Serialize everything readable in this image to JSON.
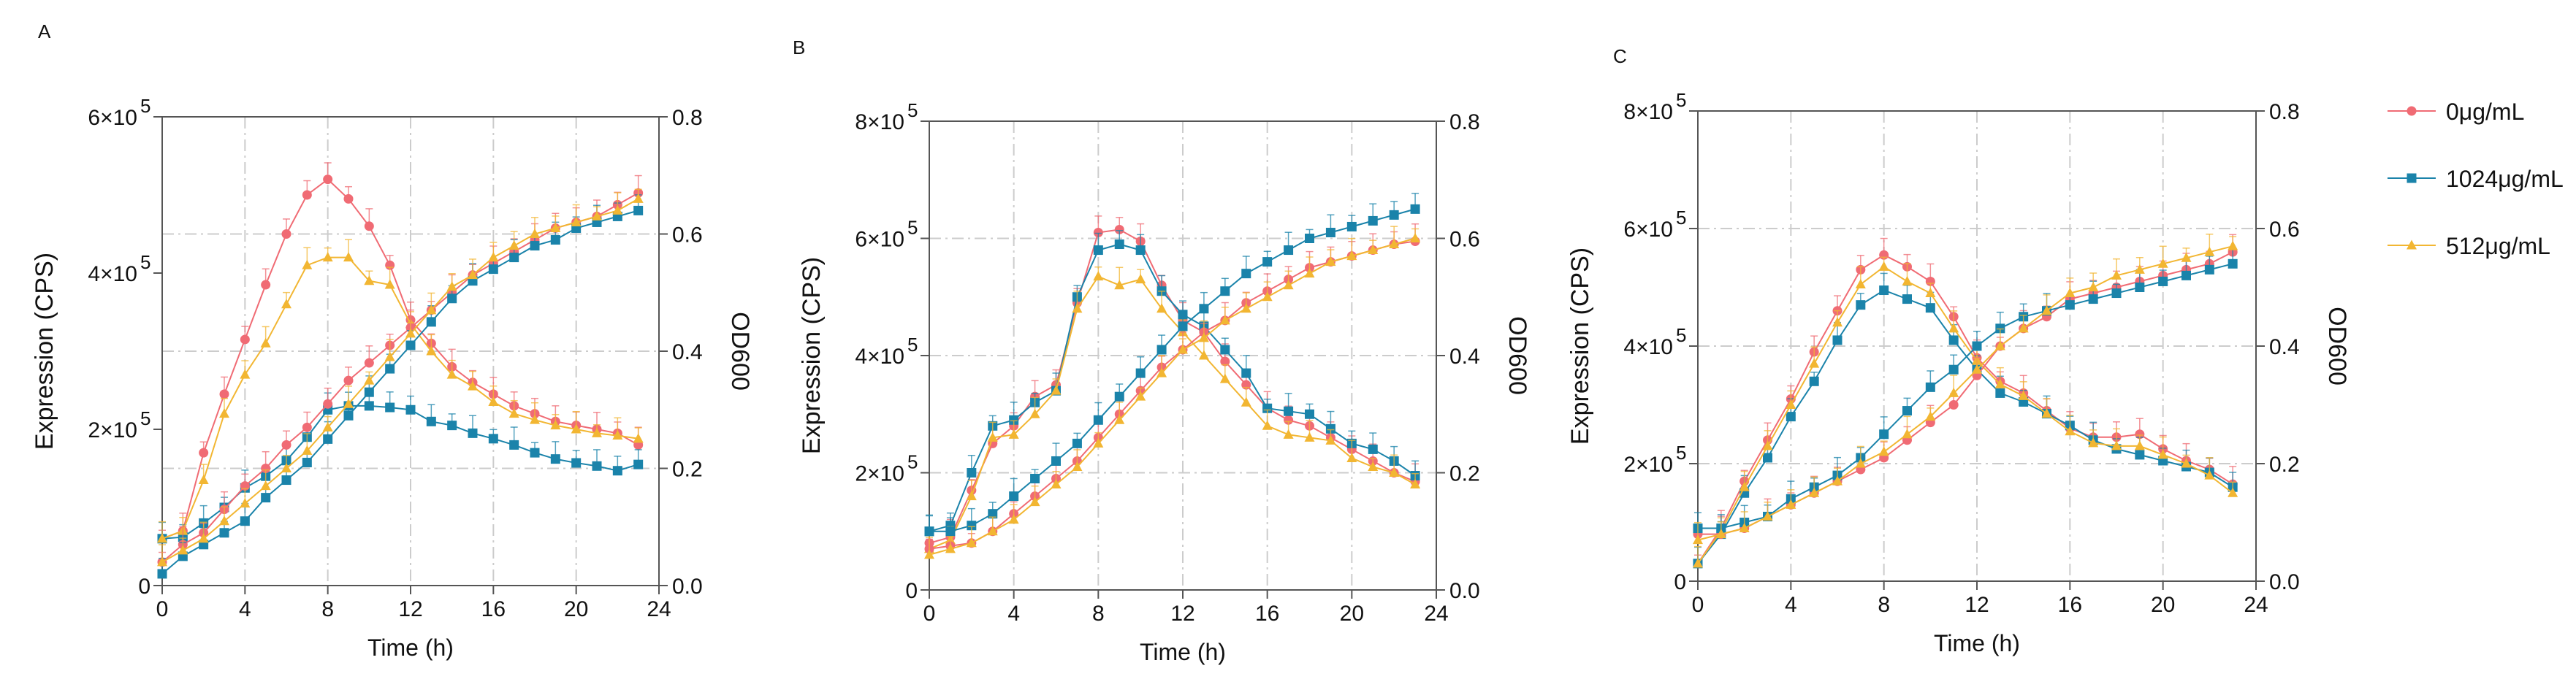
{
  "colors": {
    "red": "#f06b74",
    "blue": "#1a83aa",
    "yellow": "#f2b632",
    "axis": "#555555",
    "grid": "#cccccc"
  },
  "legend": [
    {
      "name": "0μg/mL",
      "color": "#f06b74",
      "marker": "circle"
    },
    {
      "name": "1024μg/mL",
      "color": "#1a83aa",
      "marker": "square"
    },
    {
      "name": "512μg/mL",
      "color": "#f2b632",
      "marker": "triangle"
    }
  ],
  "chart_data": [
    {
      "panel": "A",
      "type": "line",
      "xlabel": "Time (h)",
      "ylabel_left": "Expression (CPS)",
      "ylabel_right": "OD600",
      "xlim": [
        0,
        24
      ],
      "xticks": [
        "0",
        "4",
        "8",
        "12",
        "16",
        "20",
        "24"
      ],
      "ylim_left": [
        0,
        600000
      ],
      "yticks_left": [
        "0",
        "2×10",
        "4×10",
        "6×10"
      ],
      "ylim_right": [
        0,
        0.8
      ],
      "yticks_right": [
        "0.0",
        "0.2",
        "0.4",
        "0.6",
        "0.8"
      ],
      "x": [
        0,
        1,
        2,
        3,
        4,
        5,
        6,
        7,
        8,
        9,
        10,
        11,
        12,
        13,
        14,
        15,
        16,
        17,
        18,
        19,
        20,
        21,
        22,
        23
      ],
      "series": [
        {
          "name": "0μg/mL",
          "axis": "left",
          "values": [
            60000,
            70000,
            170000,
            245000,
            315000,
            385000,
            450000,
            500000,
            520000,
            495000,
            460000,
            410000,
            340000,
            310000,
            280000,
            260000,
            245000,
            230000,
            220000,
            210000,
            205000,
            200000,
            195000,
            180000
          ]
        },
        {
          "name": "1024μg/mL",
          "axis": "left",
          "values": [
            60000,
            62000,
            80000,
            100000,
            125000,
            140000,
            160000,
            190000,
            225000,
            230000,
            230000,
            228000,
            225000,
            210000,
            205000,
            195000,
            188000,
            180000,
            170000,
            162000,
            157000,
            153000,
            147000,
            155000
          ]
        },
        {
          "name": "512μg/mL",
          "axis": "left",
          "values": [
            60000,
            70000,
            135000,
            220000,
            270000,
            310000,
            360000,
            410000,
            420000,
            420000,
            390000,
            385000,
            335000,
            300000,
            270000,
            255000,
            235000,
            220000,
            212000,
            205000,
            200000,
            195000,
            192000,
            188000
          ]
        },
        {
          "name": "0μg/mL",
          "axis": "right",
          "values": [
            0.04,
            0.07,
            0.09,
            0.13,
            0.17,
            0.2,
            0.24,
            0.27,
            0.31,
            0.35,
            0.38,
            0.41,
            0.44,
            0.47,
            0.5,
            0.53,
            0.55,
            0.57,
            0.59,
            0.61,
            0.62,
            0.63,
            0.65,
            0.67
          ]
        },
        {
          "name": "1024μg/mL",
          "axis": "right",
          "values": [
            0.02,
            0.05,
            0.07,
            0.09,
            0.11,
            0.15,
            0.18,
            0.21,
            0.25,
            0.29,
            0.33,
            0.37,
            0.41,
            0.45,
            0.49,
            0.52,
            0.54,
            0.56,
            0.58,
            0.59,
            0.61,
            0.62,
            0.63,
            0.64
          ]
        },
        {
          "name": "512μg/mL",
          "axis": "right",
          "values": [
            0.04,
            0.06,
            0.08,
            0.11,
            0.14,
            0.17,
            0.2,
            0.23,
            0.27,
            0.31,
            0.35,
            0.39,
            0.43,
            0.47,
            0.51,
            0.53,
            0.56,
            0.58,
            0.6,
            0.61,
            0.62,
            0.63,
            0.64,
            0.66
          ]
        }
      ]
    },
    {
      "panel": "B",
      "type": "line",
      "xlabel": "Time (h)",
      "ylabel_left": "Expression (CPS)",
      "ylabel_right": "OD600",
      "xlim": [
        0,
        24
      ],
      "xticks": [
        "0",
        "4",
        "8",
        "12",
        "16",
        "20",
        "24"
      ],
      "ylim_left": [
        0,
        800000
      ],
      "yticks_left": [
        "0",
        "2×10",
        "4×10",
        "6×10",
        "8×10"
      ],
      "ylim_right": [
        0,
        0.8
      ],
      "yticks_right": [
        "0.0",
        "0.2",
        "0.4",
        "0.6",
        "0.8"
      ],
      "x": [
        0,
        1,
        2,
        3,
        4,
        5,
        6,
        7,
        8,
        9,
        10,
        11,
        12,
        13,
        14,
        15,
        16,
        17,
        18,
        19,
        20,
        21,
        22,
        23
      ],
      "series": [
        {
          "name": "0μg/mL",
          "axis": "left",
          "values": [
            80000,
            90000,
            170000,
            250000,
            280000,
            330000,
            350000,
            490000,
            610000,
            615000,
            595000,
            520000,
            460000,
            440000,
            390000,
            350000,
            310000,
            290000,
            280000,
            260000,
            240000,
            220000,
            200000,
            185000
          ]
        },
        {
          "name": "1024μg/mL",
          "axis": "left",
          "values": [
            100000,
            110000,
            200000,
            280000,
            290000,
            320000,
            340000,
            500000,
            580000,
            590000,
            580000,
            510000,
            470000,
            450000,
            410000,
            370000,
            310000,
            305000,
            300000,
            275000,
            250000,
            240000,
            220000,
            195000
          ]
        },
        {
          "name": "512μg/mL",
          "axis": "left",
          "values": [
            70000,
            85000,
            160000,
            260000,
            265000,
            300000,
            340000,
            480000,
            535000,
            520000,
            530000,
            480000,
            440000,
            400000,
            360000,
            320000,
            280000,
            265000,
            260000,
            255000,
            225000,
            210000,
            200000,
            180000
          ]
        },
        {
          "name": "0μg/mL",
          "axis": "right",
          "values": [
            0.07,
            0.075,
            0.08,
            0.1,
            0.13,
            0.16,
            0.19,
            0.22,
            0.26,
            0.3,
            0.34,
            0.38,
            0.41,
            0.44,
            0.46,
            0.49,
            0.51,
            0.53,
            0.55,
            0.56,
            0.57,
            0.58,
            0.59,
            0.595
          ]
        },
        {
          "name": "1024μg/mL",
          "axis": "right",
          "values": [
            0.1,
            0.1,
            0.11,
            0.13,
            0.16,
            0.19,
            0.22,
            0.25,
            0.29,
            0.33,
            0.37,
            0.41,
            0.45,
            0.48,
            0.51,
            0.54,
            0.56,
            0.58,
            0.6,
            0.61,
            0.62,
            0.63,
            0.64,
            0.65
          ]
        },
        {
          "name": "512μg/mL",
          "axis": "right",
          "values": [
            0.06,
            0.07,
            0.08,
            0.1,
            0.12,
            0.15,
            0.18,
            0.21,
            0.25,
            0.29,
            0.33,
            0.37,
            0.41,
            0.43,
            0.46,
            0.48,
            0.5,
            0.52,
            0.54,
            0.56,
            0.57,
            0.58,
            0.59,
            0.6
          ]
        }
      ]
    },
    {
      "panel": "C",
      "type": "line",
      "xlabel": "Time (h)",
      "ylabel_left": "Expression (CPS)",
      "ylabel_right": "OD600",
      "xlim": [
        0,
        24
      ],
      "xticks": [
        "0",
        "4",
        "8",
        "12",
        "16",
        "20",
        "24"
      ],
      "ylim_left": [
        0,
        800000
      ],
      "yticks_left": [
        "0",
        "2×10",
        "4×10",
        "6×10",
        "8×10"
      ],
      "ylim_right": [
        0,
        0.8
      ],
      "yticks_right": [
        "0.0",
        "0.2",
        "0.4",
        "0.6",
        "0.8"
      ],
      "x": [
        0,
        1,
        2,
        3,
        4,
        5,
        6,
        7,
        8,
        9,
        10,
        11,
        12,
        13,
        14,
        15,
        16,
        17,
        18,
        19,
        20,
        21,
        22,
        23
      ],
      "series": [
        {
          "name": "0μg/mL",
          "axis": "left",
          "values": [
            30000,
            90000,
            170000,
            240000,
            310000,
            390000,
            460000,
            530000,
            555000,
            535000,
            510000,
            450000,
            380000,
            340000,
            320000,
            290000,
            260000,
            245000,
            245000,
            250000,
            225000,
            205000,
            190000,
            165000
          ]
        },
        {
          "name": "1024μg/mL",
          "axis": "left",
          "values": [
            30000,
            80000,
            150000,
            210000,
            280000,
            340000,
            410000,
            470000,
            495000,
            480000,
            465000,
            410000,
            360000,
            320000,
            305000,
            285000,
            265000,
            240000,
            225000,
            215000,
            205000,
            195000,
            185000,
            160000
          ]
        },
        {
          "name": "512μg/mL",
          "axis": "left",
          "values": [
            30000,
            85000,
            160000,
            230000,
            300000,
            370000,
            440000,
            505000,
            535000,
            510000,
            490000,
            430000,
            375000,
            335000,
            315000,
            285000,
            255000,
            235000,
            230000,
            230000,
            215000,
            200000,
            180000,
            150000
          ]
        },
        {
          "name": "0μg/mL",
          "axis": "right",
          "values": [
            0.08,
            0.08,
            0.09,
            0.11,
            0.13,
            0.15,
            0.17,
            0.19,
            0.21,
            0.24,
            0.27,
            0.3,
            0.35,
            0.4,
            0.43,
            0.45,
            0.48,
            0.49,
            0.5,
            0.51,
            0.52,
            0.53,
            0.54,
            0.56
          ]
        },
        {
          "name": "1024μg/mL",
          "axis": "right",
          "values": [
            0.09,
            0.09,
            0.1,
            0.11,
            0.14,
            0.16,
            0.18,
            0.21,
            0.25,
            0.29,
            0.33,
            0.36,
            0.4,
            0.43,
            0.45,
            0.46,
            0.47,
            0.48,
            0.49,
            0.5,
            0.51,
            0.52,
            0.53,
            0.54
          ]
        },
        {
          "name": "512μg/mL",
          "axis": "right",
          "values": [
            0.07,
            0.08,
            0.09,
            0.11,
            0.13,
            0.15,
            0.17,
            0.2,
            0.22,
            0.25,
            0.28,
            0.32,
            0.36,
            0.4,
            0.43,
            0.46,
            0.49,
            0.5,
            0.52,
            0.53,
            0.54,
            0.55,
            0.56,
            0.57
          ]
        }
      ]
    }
  ]
}
